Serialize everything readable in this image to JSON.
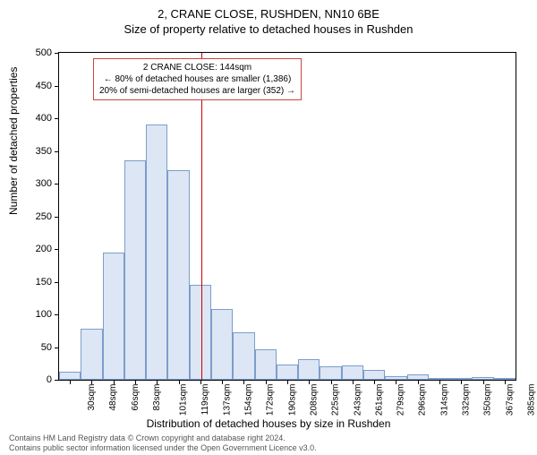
{
  "title_main": "2, CRANE CLOSE, RUSHDEN, NN10 6BE",
  "title_sub": "Size of property relative to detached houses in Rushden",
  "ylabel": "Number of detached properties",
  "xlabel": "Distribution of detached houses by size in Rushden",
  "footer_line1": "Contains HM Land Registry data © Crown copyright and database right 2024.",
  "footer_line2": "Contains public sector information licensed under the Open Government Licence v3.0.",
  "chart": {
    "type": "histogram",
    "ylim": [
      0,
      500
    ],
    "ytick_step": 50,
    "xlim_sqm": [
      30,
      395
    ],
    "x_tick_labels": [
      "30sqm",
      "48sqm",
      "66sqm",
      "83sqm",
      "101sqm",
      "119sqm",
      "137sqm",
      "154sqm",
      "172sqm",
      "190sqm",
      "208sqm",
      "225sqm",
      "243sqm",
      "261sqm",
      "279sqm",
      "296sqm",
      "314sqm",
      "332sqm",
      "350sqm",
      "367sqm",
      "385sqm"
    ],
    "bar_values": [
      12,
      78,
      195,
      335,
      390,
      320,
      145,
      108,
      72,
      46,
      23,
      32,
      20,
      22,
      15,
      6,
      8,
      2,
      2,
      4,
      2
    ],
    "bar_fill": "#dce6f4",
    "bar_stroke": "#7a9ecb",
    "vline_sqm": 144,
    "vline_color": "#cc0000",
    "annot_line1": "2 CRANE CLOSE: 144sqm",
    "annot_line2": "← 80% of detached houses are smaller (1,386)",
    "annot_line3": "20% of semi-detached houses are larger (352) →",
    "annot_border": "#c44"
  }
}
